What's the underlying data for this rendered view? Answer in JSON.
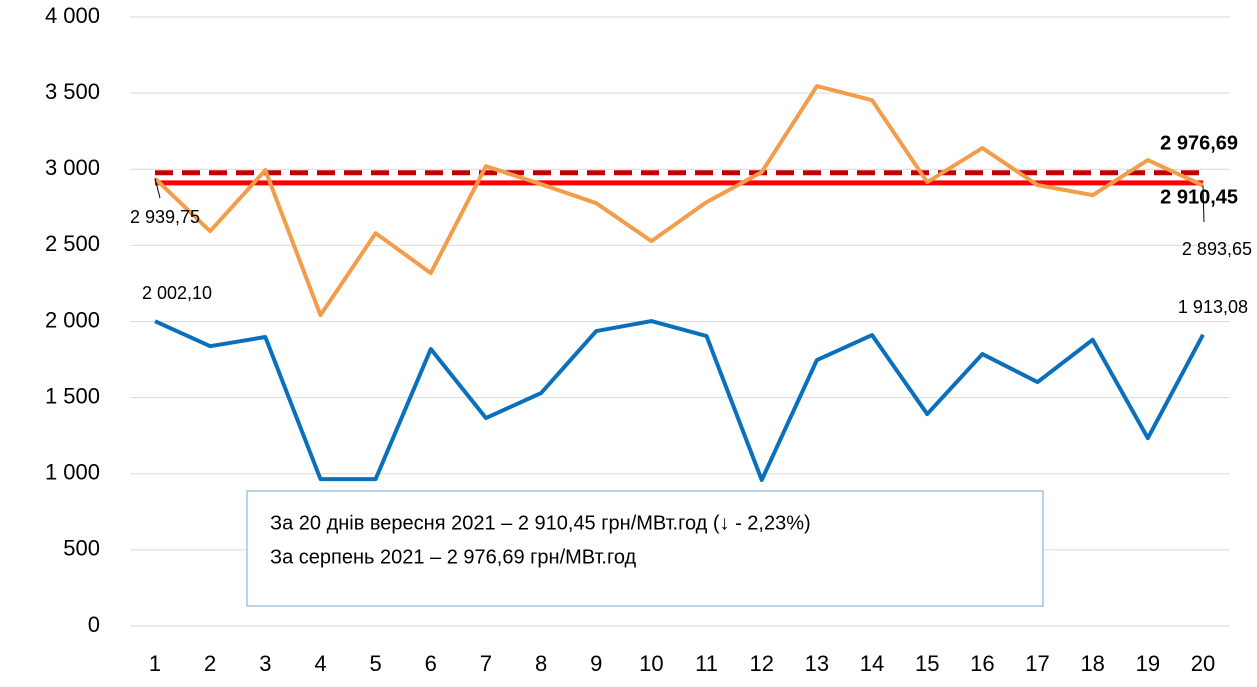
{
  "chart_data": {
    "type": "line",
    "categories": [
      "1",
      "2",
      "3",
      "4",
      "5",
      "6",
      "7",
      "8",
      "9",
      "10",
      "11",
      "12",
      "13",
      "14",
      "15",
      "16",
      "17",
      "18",
      "19",
      "20"
    ],
    "series": [
      {
        "color": "#f39c4a",
        "values": [
          2939.75,
          2593,
          2994,
          2042,
          2580,
          2318,
          3020,
          2902,
          2777,
          2528,
          2784,
          2981,
          3546,
          3454,
          2915,
          3139,
          2896,
          2830,
          3060,
          2893.65
        ],
        "value_labels": [
          "2 939,75",
          null,
          null,
          null,
          null,
          null,
          null,
          null,
          null,
          null,
          null,
          null,
          null,
          null,
          null,
          null,
          null,
          null,
          null,
          "2 893,65"
        ]
      },
      {
        "color": "#0a6fbd",
        "values": [
          2002.1,
          1838,
          1898,
          965,
          965,
          1819,
          1366,
          1530,
          1937,
          2003,
          1904,
          959,
          1747,
          1911,
          1392,
          1786,
          1602,
          1880,
          1234,
          1913.08
        ],
        "value_labels": [
          "2 002,10",
          null,
          null,
          null,
          null,
          null,
          null,
          null,
          null,
          null,
          null,
          null,
          null,
          null,
          null,
          null,
          null,
          null,
          null,
          "1 913,08"
        ]
      }
    ],
    "reference_lines": [
      {
        "value": 2976.69,
        "label": "2 976,69",
        "color": "#c00000",
        "dashed": true
      },
      {
        "value": 2910.45,
        "label": "2 910,45",
        "color": "#ff0000",
        "dashed": false
      }
    ],
    "annotations": [
      "За 20 днів вересня 2021 – 2 910,45 грн/МВт.год (↓ - 2,23%)",
      "За серпень 2021 – 2 976,69 грн/МВт.год"
    ],
    "ylim": [
      0,
      4000
    ],
    "yticks": [
      0,
      500,
      {
        "value": 1000,
        "label": "1 000"
      },
      {
        "value": 1500,
        "label": "1 500"
      },
      {
        "value": 2000,
        "label": "2 000"
      },
      {
        "value": 2500,
        "label": "2 500"
      },
      {
        "value": 3000,
        "label": "3 000"
      },
      {
        "value": 3500,
        "label": "3 500"
      },
      {
        "value": 4000,
        "label": "4 000"
      }
    ],
    "grid": true
  }
}
